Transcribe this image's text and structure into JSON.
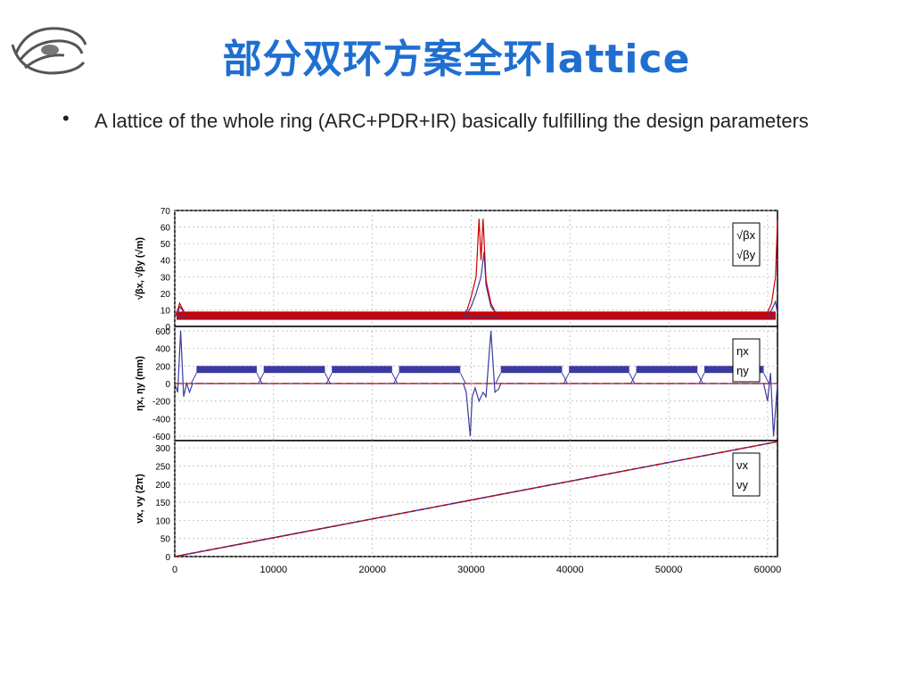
{
  "slide": {
    "title": "部分双环方案全环lattice",
    "bullet": "A lattice of the whole ring (ARC+PDR+IR) basically fulfilling the design parameters"
  },
  "chart_data": [
    {
      "type": "line",
      "ylabel": "√βx, √βy (√m)",
      "ylim": [
        0,
        70
      ],
      "yticks": [
        0,
        10,
        20,
        30,
        40,
        50,
        60,
        70
      ],
      "grid": true,
      "legend": [
        "√βx",
        "√βy"
      ],
      "legend_position": "top-right",
      "series": [
        {
          "name": "√βx",
          "color": "#3a3aa0",
          "x": [
            0,
            300,
            500,
            1000,
            1500,
            1800,
            29000,
            29600,
            30000,
            30500,
            31000,
            31300,
            31500,
            32000,
            32500,
            33000,
            59800,
            60400,
            60800,
            61000
          ],
          "y": [
            6,
            8,
            12,
            8,
            6,
            6,
            6,
            8,
            12,
            20,
            30,
            45,
            25,
            12,
            8,
            6,
            6,
            10,
            15,
            8
          ]
        },
        {
          "name": "√βy",
          "color": "#cc0000",
          "x": [
            0,
            300,
            500,
            1000,
            1500,
            1800,
            29000,
            29600,
            30000,
            30500,
            30800,
            31000,
            31200,
            31500,
            32000,
            32500,
            33000,
            59800,
            60400,
            60800,
            61000
          ],
          "y": [
            6,
            10,
            14,
            8,
            6,
            6,
            6,
            10,
            18,
            30,
            65,
            40,
            65,
            28,
            14,
            8,
            6,
            6,
            14,
            30,
            64
          ]
        }
      ]
    },
    {
      "type": "line",
      "ylabel": "ηx, ηy (mm)",
      "ylim": [
        -650,
        650
      ],
      "yticks": [
        -600,
        -400,
        -200,
        0,
        200,
        400,
        600
      ],
      "grid": true,
      "legend": [
        "ηx",
        "ηy"
      ],
      "legend_position": "top-right",
      "arcs": [
        [
          2200,
          8300
        ],
        [
          9000,
          15200
        ],
        [
          15900,
          22000
        ],
        [
          22700,
          28900
        ],
        [
          33000,
          39200
        ],
        [
          39900,
          46000
        ],
        [
          46700,
          52900
        ],
        [
          53600,
          59600
        ]
      ],
      "arc_eta_range": [
        120,
        200
      ],
      "series": [
        {
          "name": "ηx",
          "color": "#3a3aa0",
          "x": [
            0,
            300,
            600,
            900,
            1200,
            1500,
            1800,
            29200,
            29500,
            29900,
            30100,
            30400,
            30800,
            31200,
            31500,
            32000,
            32400,
            32800,
            33000,
            59600,
            60000,
            60300,
            60600,
            61000
          ],
          "y": [
            0,
            -100,
            600,
            -150,
            0,
            -100,
            0,
            0,
            -100,
            -600,
            -150,
            -50,
            -200,
            -100,
            -150,
            600,
            -100,
            -60,
            0,
            0,
            -200,
            120,
            -600,
            0
          ]
        },
        {
          "name": "ηy",
          "color": "#cc0000",
          "x": [
            0,
            61000
          ],
          "y": [
            0,
            0
          ]
        }
      ]
    },
    {
      "type": "line",
      "xlabel": "",
      "ylabel": "νx, νy (2π)",
      "ylim": [
        0,
        320
      ],
      "yticks": [
        0,
        50,
        100,
        150,
        200,
        250,
        300
      ],
      "xlim": [
        0,
        61000
      ],
      "xticks": [
        0,
        10000,
        20000,
        30000,
        40000,
        50000,
        60000
      ],
      "grid": true,
      "legend": [
        "νx",
        "νy"
      ],
      "legend_position": "top-right",
      "series": [
        {
          "name": "νx",
          "color": "#3a3aa0",
          "x": [
            0,
            61000
          ],
          "y": [
            0,
            317
          ]
        },
        {
          "name": "νy",
          "color": "#cc0000",
          "x": [
            0,
            61000
          ],
          "y": [
            0,
            317
          ]
        }
      ]
    }
  ]
}
